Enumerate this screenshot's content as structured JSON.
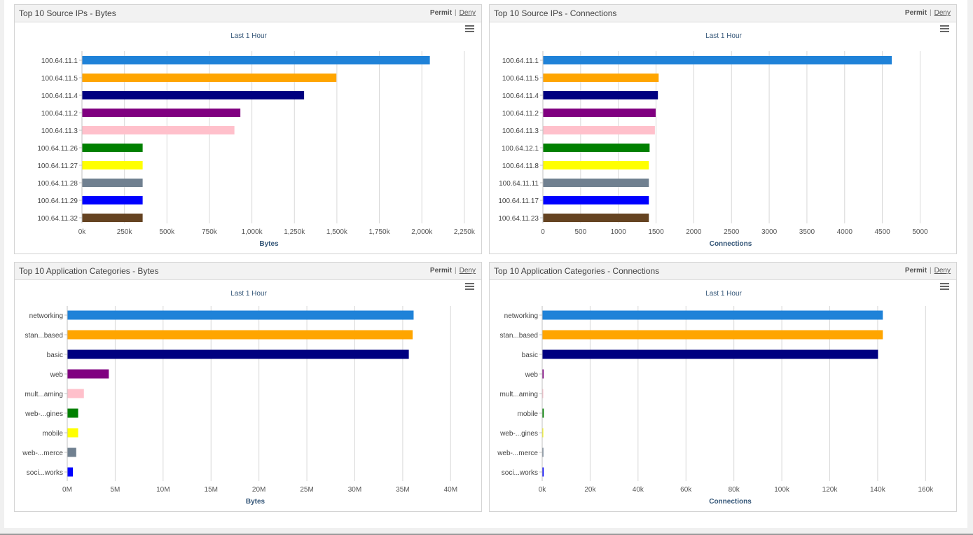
{
  "panels": [
    {
      "title": "Top 10 Source IPs - Bytes",
      "permit_label": "Permit",
      "deny_label": "Deny",
      "menu_icon": "hamburger-menu-icon",
      "chart_data": {
        "type": "bar",
        "orientation": "horizontal",
        "subtitle": "Last 1 Hour",
        "xlabel": "Bytes",
        "xlim": [
          0,
          2300000
        ],
        "xticks": [
          0,
          250000,
          500000,
          750000,
          1000000,
          1250000,
          1500000,
          1750000,
          2000000,
          2250000
        ],
        "xtick_labels": [
          "0k",
          "250k",
          "500k",
          "750k",
          "1,000k",
          "1,250k",
          "1,500k",
          "1,750k",
          "2,000k",
          "2,250k"
        ],
        "grid": true,
        "categories": [
          "100.64.11.1",
          "100.64.11.5",
          "100.64.11.4",
          "100.64.11.2",
          "100.64.11.3",
          "100.64.11.26",
          "100.64.11.27",
          "100.64.11.28",
          "100.64.11.29",
          "100.64.11.32"
        ],
        "values": [
          2045000,
          1495000,
          1305000,
          930000,
          895000,
          355000,
          355000,
          355000,
          355000,
          355000
        ],
        "colors": [
          "#1f82d8",
          "#ffa500",
          "#000080",
          "#800080",
          "#ffc0cb",
          "#008000",
          "#ffff00",
          "#708090",
          "#0000ff",
          "#654321"
        ]
      }
    },
    {
      "title": "Top 10 Source IPs - Connections",
      "permit_label": "Permit",
      "deny_label": "Deny",
      "menu_icon": "hamburger-menu-icon",
      "chart_data": {
        "type": "bar",
        "orientation": "horizontal",
        "subtitle": "Last 1 Hour",
        "xlabel": "Connections",
        "xlim": [
          0,
          5200
        ],
        "xticks": [
          0,
          500,
          1000,
          1500,
          2000,
          2500,
          3000,
          3500,
          4000,
          4500,
          5000
        ],
        "xtick_labels": [
          "0",
          "500",
          "1000",
          "1500",
          "2000",
          "2500",
          "3000",
          "3500",
          "4000",
          "4500",
          "5000"
        ],
        "grid": true,
        "categories": [
          "100.64.11.1",
          "100.64.11.5",
          "100.64.11.4",
          "100.64.11.2",
          "100.64.11.3",
          "100.64.12.1",
          "100.64.11.8",
          "100.64.11.11",
          "100.64.11.17",
          "100.64.11.23"
        ],
        "values": [
          4620,
          1530,
          1520,
          1490,
          1480,
          1410,
          1400,
          1400,
          1400,
          1400
        ],
        "colors": [
          "#1f82d8",
          "#ffa500",
          "#000080",
          "#800080",
          "#ffc0cb",
          "#008000",
          "#ffff00",
          "#708090",
          "#0000ff",
          "#654321"
        ]
      }
    },
    {
      "title": "Top 10 Application Categories - Bytes",
      "permit_label": "Permit",
      "deny_label": "Deny",
      "menu_icon": "hamburger-menu-icon",
      "chart_data": {
        "type": "bar",
        "orientation": "horizontal",
        "subtitle": "Last 1 Hour",
        "xlabel": "Bytes",
        "xlim": [
          0,
          41000000
        ],
        "xticks": [
          0,
          5000000,
          10000000,
          15000000,
          20000000,
          25000000,
          30000000,
          35000000,
          40000000
        ],
        "xtick_labels": [
          "0M",
          "5M",
          "10M",
          "15M",
          "20M",
          "25M",
          "30M",
          "35M",
          "40M"
        ],
        "grid": true,
        "categories": [
          "networking",
          "stan...based",
          "basic",
          "web",
          "mult...aming",
          "web-...gines",
          "mobile",
          "web-...merce",
          "soci...works"
        ],
        "values": [
          36100000,
          36000000,
          35600000,
          4300000,
          1700000,
          1100000,
          1100000,
          900000,
          550000
        ],
        "colors": [
          "#1f82d8",
          "#ffa500",
          "#000080",
          "#800080",
          "#ffc0cb",
          "#008000",
          "#ffff00",
          "#708090",
          "#0000ff"
        ]
      }
    },
    {
      "title": "Top 10 Application Categories - Connections",
      "permit_label": "Permit",
      "deny_label": "Deny",
      "menu_icon": "hamburger-menu-icon",
      "chart_data": {
        "type": "bar",
        "orientation": "horizontal",
        "subtitle": "Last 1 Hour",
        "xlabel": "Connections",
        "xlim": [
          0,
          164000
        ],
        "xticks": [
          0,
          20000,
          40000,
          60000,
          80000,
          100000,
          120000,
          140000,
          160000
        ],
        "xtick_labels": [
          "0k",
          "20k",
          "40k",
          "60k",
          "80k",
          "100k",
          "120k",
          "140k",
          "160k"
        ],
        "grid": true,
        "categories": [
          "networking",
          "stan...based",
          "basic",
          "web",
          "mult...aming",
          "mobile",
          "web-...gines",
          "web-...merce",
          "soci...works"
        ],
        "values": [
          142000,
          142000,
          140000,
          450,
          150,
          500,
          300,
          350,
          450
        ],
        "colors": [
          "#1f82d8",
          "#ffa500",
          "#000080",
          "#800080",
          "#ffc0cb",
          "#008000",
          "#ffff00",
          "#708090",
          "#0000ff"
        ]
      }
    }
  ]
}
